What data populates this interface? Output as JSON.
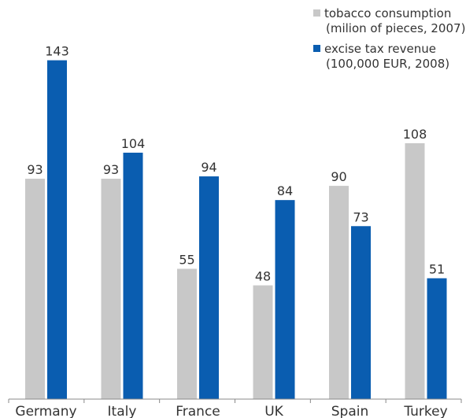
{
  "chart_data": {
    "type": "bar",
    "categories": [
      "Germany",
      "Italy",
      "France",
      "UK",
      "Spain",
      "Turkey"
    ],
    "series": [
      {
        "name": "tobacco consumption",
        "name_detail": "(milion of pieces, 2007)",
        "color": "#c8c8c8",
        "values": [
          93,
          93,
          55,
          48,
          90,
          108
        ]
      },
      {
        "name": "excise tax revenue",
        "name_detail": "(100,000 EUR, 2008)",
        "color": "#0a5db0",
        "values": [
          143,
          104,
          94,
          84,
          73,
          51
        ]
      }
    ],
    "ylim": [
      0,
      150
    ],
    "grid": false,
    "data_labels": true,
    "legend_position": "top-right",
    "label_color": "#333333",
    "axis_color": "#888888"
  }
}
